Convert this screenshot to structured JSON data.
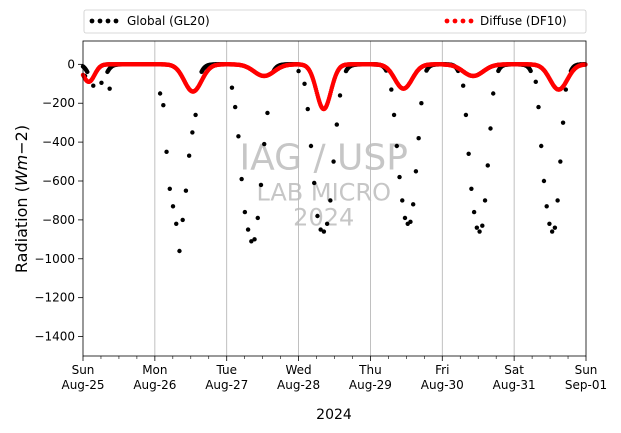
{
  "chart_data": {
    "type": "scatter",
    "ylabel": "Radiation ($Wm{-}2$)",
    "ylabel_parts": {
      "pre": "Radiation (",
      "math": "Wm",
      "sign": "−2",
      "post": ")"
    },
    "xlabel": "2024",
    "ylim": [
      -1500,
      120
    ],
    "xlim": [
      0,
      7
    ],
    "yticks": [
      0,
      -200,
      -400,
      -600,
      -800,
      -1000,
      -1200,
      -1400
    ],
    "x_unit": "days since Sun Aug-25 00:00",
    "xticks": [
      {
        "x": 0,
        "day": "Sun",
        "date": "Aug-25"
      },
      {
        "x": 1,
        "day": "Mon",
        "date": "Aug-26"
      },
      {
        "x": 2,
        "day": "Tue",
        "date": "Aug-27"
      },
      {
        "x": 3,
        "day": "Wed",
        "date": "Aug-28"
      },
      {
        "x": 4,
        "day": "Thu",
        "date": "Aug-29"
      },
      {
        "x": 5,
        "day": "Fri",
        "date": "Aug-30"
      },
      {
        "x": 6,
        "day": "Sat",
        "date": "Aug-31"
      },
      {
        "x": 7,
        "day": "Sun",
        "date": "Sep-01"
      }
    ],
    "grid": "vertical",
    "legend_position": "top-outside",
    "watermark": [
      "IAG / USP",
      "LAB MICRO",
      "2024"
    ],
    "series": [
      {
        "name": "Global (GL20)",
        "color": "#000000",
        "days": [
          {
            "minimum": -130,
            "trough": 0.2,
            "width": 0.09,
            "scatter": [
              -60,
              -110,
              -95,
              -125
            ]
          },
          {
            "minimum": -960,
            "trough": 0.32,
            "width": 0.13,
            "scatter": [
              -150,
              -210,
              -450,
              -640,
              -730,
              -820,
              -960,
              -800,
              -650,
              -470,
              -350,
              -260
            ]
          },
          {
            "minimum": -910,
            "trough": 0.32,
            "width": 0.13,
            "scatter": [
              -120,
              -220,
              -370,
              -590,
              -760,
              -850,
              -910,
              -900,
              -790,
              -620,
              -410,
              -250
            ]
          },
          {
            "minimum": -870,
            "trough": 0.33,
            "width": 0.13,
            "scatter": [
              -100,
              -230,
              -420,
              -610,
              -780,
              -850,
              -860,
              -820,
              -700,
              -500,
              -310,
              -160
            ]
          },
          {
            "minimum": -820,
            "trough": 0.5,
            "width": 0.11,
            "scatter": [
              -130,
              -260,
              -420,
              -580,
              -700,
              -790,
              -820,
              -810,
              -720,
              -550,
              -380,
              -200
            ]
          },
          {
            "minimum": -860,
            "trough": 0.5,
            "width": 0.11,
            "scatter": [
              -110,
              -260,
              -460,
              -640,
              -760,
              -840,
              -860,
              -830,
              -700,
              -520,
              -330,
              -150
            ]
          },
          {
            "minimum": -860,
            "trough": 0.51,
            "width": 0.11,
            "scatter": [
              -90,
              -220,
              -420,
              -600,
              -730,
              -820,
              -860,
              -840,
              -700,
              -500,
              -300,
              -130
            ]
          }
        ]
      },
      {
        "name": "Diffuse (DF10)",
        "color": "#ff0000",
        "days": [
          {
            "minimum": -90,
            "trough": 0.08,
            "width": 0.08
          },
          {
            "minimum": -140,
            "trough": 0.53,
            "width": 0.12
          },
          {
            "minimum": -60,
            "trough": 0.52,
            "width": 0.14
          },
          {
            "minimum": -230,
            "trough": 0.35,
            "width": 0.1
          },
          {
            "minimum": -125,
            "trough": 0.46,
            "width": 0.12
          },
          {
            "minimum": -60,
            "trough": 0.43,
            "width": 0.14
          },
          {
            "minimum": -130,
            "trough": 0.62,
            "width": 0.12
          }
        ]
      }
    ]
  }
}
